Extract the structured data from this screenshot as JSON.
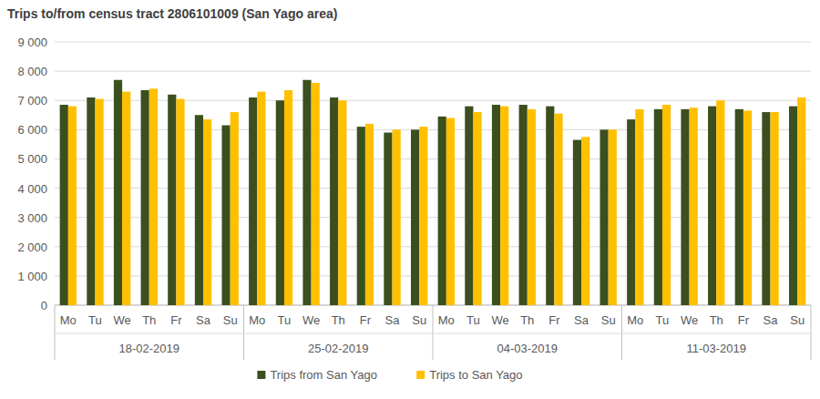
{
  "chart_data": {
    "type": "bar",
    "title": "Trips to/from census tract 2806101009 (San Yago area)",
    "categories": [
      "Mo",
      "Tu",
      "We",
      "Th",
      "Fr",
      "Sa",
      "Su",
      "Mo",
      "Tu",
      "We",
      "Th",
      "Fr",
      "Sa",
      "Su",
      "Mo",
      "Tu",
      "We",
      "Th",
      "Fr",
      "Sa",
      "Su",
      "Mo",
      "Tu",
      "We",
      "Th",
      "Fr",
      "Sa",
      "Su"
    ],
    "category_groups": [
      "18-02-2019",
      "25-02-2019",
      "04-03-2019",
      "11-03-2019"
    ],
    "series": [
      {
        "name": "Trips from San Yago",
        "color": "#3b4f1f",
        "values": [
          6850,
          7100,
          7700,
          7350,
          7200,
          6500,
          6150,
          7100,
          7000,
          7700,
          7100,
          6100,
          5900,
          6000,
          6450,
          6800,
          6850,
          6850,
          6800,
          5650,
          6000,
          6350,
          6700,
          6700,
          6800,
          6700,
          6600,
          6800
        ]
      },
      {
        "name": "Trips to San Yago",
        "color": "#ffc000",
        "values": [
          6800,
          7050,
          7300,
          7400,
          7050,
          6350,
          6600,
          7300,
          7350,
          7600,
          7000,
          6200,
          6000,
          6100,
          6400,
          6600,
          6800,
          6700,
          6550,
          5750,
          6000,
          6700,
          6850,
          6750,
          7000,
          6650,
          6600,
          7100
        ]
      }
    ],
    "ylim": [
      0,
      9000
    ],
    "yticks": [
      0,
      {
        "value": 1000,
        "label": "1 000"
      },
      {
        "value": 2000,
        "label": "2 000"
      },
      {
        "value": 3000,
        "label": "3 000"
      },
      {
        "value": 4000,
        "label": "4 000"
      },
      {
        "value": 5000,
        "label": "5 000"
      },
      {
        "value": 6000,
        "label": "6 000"
      },
      {
        "value": 7000,
        "label": "7 000"
      },
      {
        "value": 8000,
        "label": "8 000"
      },
      {
        "value": 9000,
        "label": "9 000"
      }
    ],
    "grid": true,
    "legend": "bottom"
  }
}
